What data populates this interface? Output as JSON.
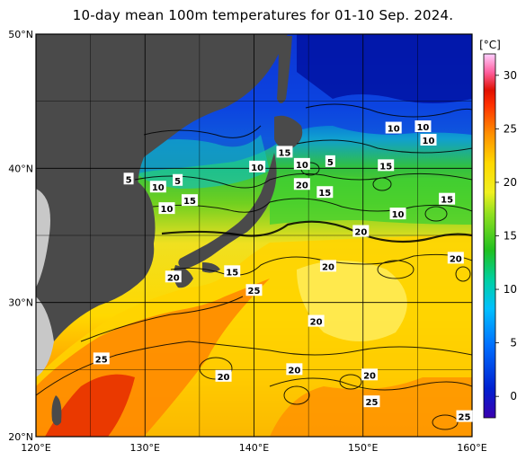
{
  "title": "10-day mean 100m temperatures for 01-10 Sep. 2024.",
  "map": {
    "lon_range": [
      120,
      160
    ],
    "lat_range": [
      20,
      50
    ],
    "lon_ticks": [
      "120°E",
      "130°E",
      "140°E",
      "150°E",
      "160°E"
    ],
    "lat_ticks": [
      "50°N",
      "40°N",
      "30°N",
      "20°N"
    ],
    "land_color": "#4a4a4a",
    "outside_color": "#c8c8c8"
  },
  "colorbar": {
    "unit": "[°C]",
    "min": -2,
    "max": 32,
    "tick_labels": [
      "30",
      "25",
      "20",
      "15",
      "10",
      "5",
      "0"
    ],
    "colors": [
      "#3a00b0",
      "#0030e0",
      "#0080ff",
      "#00c0ff",
      "#00e0a0",
      "#20c020",
      "#80e020",
      "#e0f020",
      "#ffe000",
      "#ffa000",
      "#ff5000",
      "#e01000",
      "#ff60a0",
      "#ffc0ff"
    ]
  },
  "contour_labels": [
    {
      "text": "5",
      "lon": 128.5,
      "lat": 39.2
    },
    {
      "text": "10",
      "lon": 131.2,
      "lat": 38.6
    },
    {
      "text": "5",
      "lon": 133.0,
      "lat": 39.1
    },
    {
      "text": "15",
      "lon": 134.1,
      "lat": 37.6
    },
    {
      "text": "10",
      "lon": 132.0,
      "lat": 37.0
    },
    {
      "text": "10",
      "lon": 140.3,
      "lat": 40.1
    },
    {
      "text": "15",
      "lon": 142.8,
      "lat": 41.2
    },
    {
      "text": "10",
      "lon": 144.4,
      "lat": 40.3
    },
    {
      "text": "5",
      "lon": 147.0,
      "lat": 40.5
    },
    {
      "text": "20",
      "lon": 144.4,
      "lat": 38.8
    },
    {
      "text": "15",
      "lon": 146.5,
      "lat": 38.2
    },
    {
      "text": "10",
      "lon": 152.8,
      "lat": 43.0
    },
    {
      "text": "10",
      "lon": 155.5,
      "lat": 43.1
    },
    {
      "text": "10",
      "lon": 156.0,
      "lat": 42.1
    },
    {
      "text": "15",
      "lon": 152.1,
      "lat": 40.2
    },
    {
      "text": "15",
      "lon": 157.7,
      "lat": 37.7
    },
    {
      "text": "10",
      "lon": 153.2,
      "lat": 36.6
    },
    {
      "text": "20",
      "lon": 149.8,
      "lat": 35.3
    },
    {
      "text": "20",
      "lon": 158.5,
      "lat": 33.3
    },
    {
      "text": "20",
      "lon": 146.8,
      "lat": 32.7
    },
    {
      "text": "20",
      "lon": 132.6,
      "lat": 31.9
    },
    {
      "text": "15",
      "lon": 138.0,
      "lat": 32.3
    },
    {
      "text": "25",
      "lon": 140.0,
      "lat": 30.9
    },
    {
      "text": "20",
      "lon": 145.7,
      "lat": 28.6
    },
    {
      "text": "25",
      "lon": 126.0,
      "lat": 25.8
    },
    {
      "text": "20",
      "lon": 137.2,
      "lat": 24.5
    },
    {
      "text": "20",
      "lon": 143.7,
      "lat": 25.0
    },
    {
      "text": "20",
      "lon": 150.6,
      "lat": 24.6
    },
    {
      "text": "25",
      "lon": 150.8,
      "lat": 22.6
    },
    {
      "text": "25",
      "lon": 159.3,
      "lat": 21.5
    }
  ]
}
